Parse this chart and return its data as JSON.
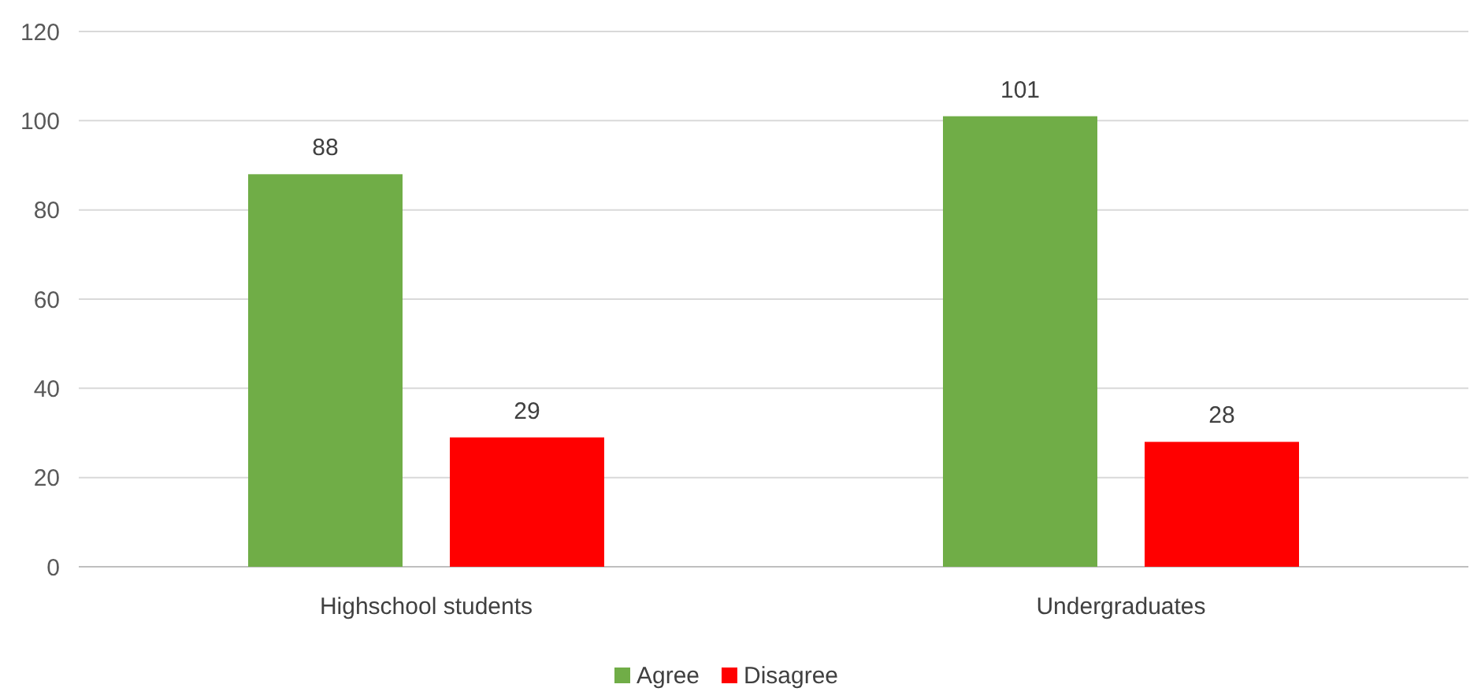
{
  "chart_data": {
    "type": "bar",
    "categories": [
      "Highschool students",
      "Undergraduates"
    ],
    "series": [
      {
        "name": "Agree",
        "color": "#70ad47",
        "values": [
          88,
          101
        ]
      },
      {
        "name": "Disagree",
        "color": "#ff0000",
        "values": [
          29,
          28
        ]
      }
    ],
    "ylim": [
      0,
      120
    ],
    "yticks": [
      0,
      20,
      40,
      60,
      80,
      100,
      120
    ],
    "grid": "y",
    "data_labels": true,
    "legend": "bottom"
  }
}
